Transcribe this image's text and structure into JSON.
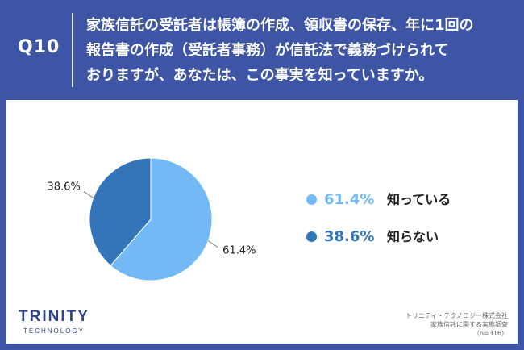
{
  "header": {
    "question_label": "Q10",
    "question_lines": [
      "家族信託の受託者は帳簿の作成、領収書の保存、年に1回の",
      "報告書の作成（受託者事務）が信託法で義務づけられて",
      "おりますが、あなたは、この事実を知っていますか。"
    ]
  },
  "chart_data": {
    "type": "pie",
    "slices": [
      {
        "label": "知っている",
        "value": 61.4,
        "value_label": "61.4%",
        "color": "#72b9f5"
      },
      {
        "label": "知らない",
        "value": 38.6,
        "value_label": "38.6%",
        "color": "#3474b8"
      }
    ]
  },
  "legend": {
    "items": [
      {
        "pct": "61.4%",
        "name": "知っている",
        "color": "#72b9f5"
      },
      {
        "pct": "38.6%",
        "name": "知らない",
        "color": "#3474b8"
      }
    ]
  },
  "footer": {
    "logo_main": "TRINITY",
    "logo_sub": "TECHNOLOGY",
    "source_lines": [
      "トリニティ・テクノロジー株式会社",
      "家族信託に関する実態調査",
      "（n=316）"
    ]
  },
  "colors": {
    "background": "#3e55a5",
    "panel": "#ffffff",
    "brand": "#2f4390"
  }
}
